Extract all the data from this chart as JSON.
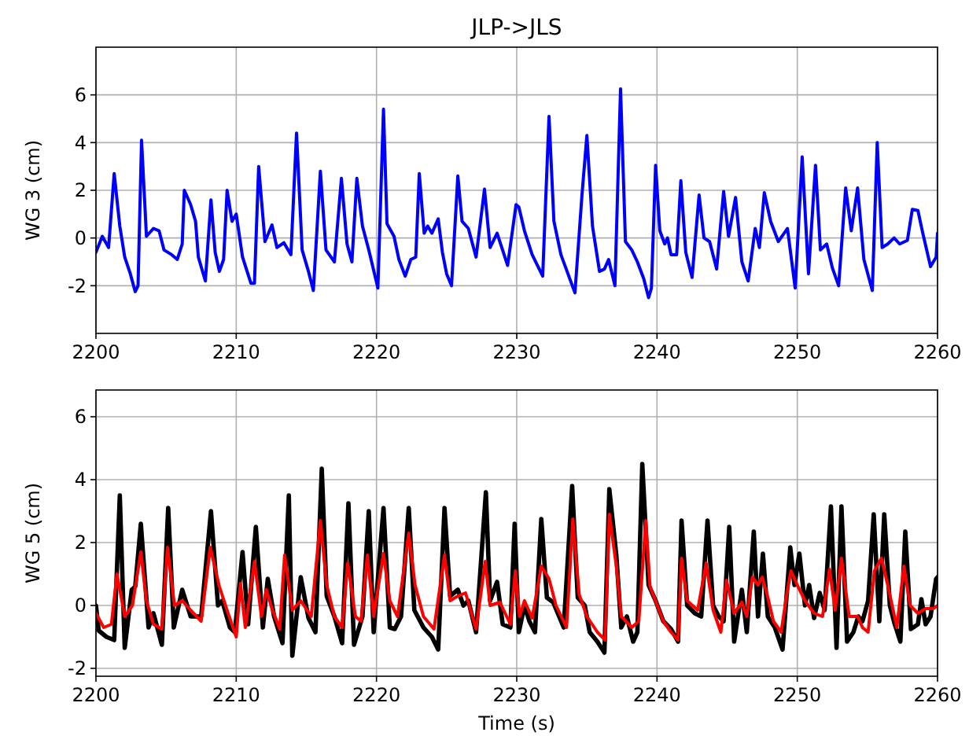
{
  "chart_data": [
    {
      "type": "line",
      "title": "JLP->JLS",
      "ylabel": "WG 3 (cm)",
      "xlim": [
        2200,
        2260
      ],
      "xticks": [
        2200,
        2210,
        2220,
        2230,
        2240,
        2250,
        2260
      ],
      "ylim": [
        -4,
        8
      ],
      "yticks": [
        -2,
        0,
        2,
        4,
        6
      ],
      "grid": true,
      "series": [
        {
          "color": "#0000ff",
          "x": [
            2200,
            2200.45,
            2200.9,
            2201.3,
            2201.7,
            2202.05,
            2202.45,
            2202.8,
            2203,
            2203.25,
            2203.6,
            2204.1,
            2204.5,
            2204.85,
            2205.4,
            2205.8,
            2206.15,
            2206.3,
            2206.75,
            2207.1,
            2207.3,
            2207.8,
            2208.2,
            2208.5,
            2208.8,
            2209.1,
            2209.35,
            2209.7,
            2210,
            2210.45,
            2211.05,
            2211.3,
            2211.6,
            2212.05,
            2212.55,
            2212.9,
            2213.4,
            2213.9,
            2214.3,
            2214.7,
            2215.15,
            2215.5,
            2216,
            2216.4,
            2217,
            2217.5,
            2217.9,
            2218.25,
            2218.6,
            2219,
            2219.45,
            2220.1,
            2220.5,
            2220.75,
            2221.25,
            2221.6,
            2222.05,
            2222.45,
            2222.8,
            2223.05,
            2223.4,
            2223.65,
            2223.95,
            2224.4,
            2224.7,
            2225,
            2225.35,
            2225.8,
            2226.1,
            2226.55,
            2227.1,
            2227.7,
            2228.1,
            2228.6,
            2229.35,
            2229.95,
            2230.15,
            2230.55,
            2231.1,
            2231.85,
            2232.3,
            2232.65,
            2233.15,
            2233.65,
            2234.15,
            2234.65,
            2235,
            2235.4,
            2235.9,
            2236.25,
            2236.55,
            2237,
            2237.4,
            2237.75,
            2238.2,
            2238.6,
            2239.05,
            2239.4,
            2239.6,
            2239.9,
            2240.2,
            2240.55,
            2240.75,
            2241,
            2241.4,
            2241.7,
            2242.05,
            2242.5,
            2243,
            2243.35,
            2243.75,
            2244.25,
            2244.75,
            2245.1,
            2245.6,
            2246.05,
            2246.5,
            2247,
            2247.3,
            2247.65,
            2248.1,
            2248.65,
            2249.3,
            2249.85,
            2250.35,
            2250.8,
            2251.3,
            2251.65,
            2252.1,
            2252.5,
            2252.95,
            2253.45,
            2253.85,
            2254.3,
            2254.75,
            2255.35,
            2255.7,
            2256.05,
            2256.45,
            2256.9,
            2257.3,
            2257.85,
            2258.2,
            2258.6,
            2258.95,
            2259.5,
            2259.9,
            2260
          ],
          "values": [
            -0.6,
            0.07,
            -0.4,
            2.7,
            0.5,
            -0.8,
            -1.5,
            -2.25,
            -2,
            4.1,
            0.07,
            0.4,
            0.3,
            -0.5,
            -0.7,
            -0.9,
            -0.25,
            2,
            1.4,
            0.7,
            -0.8,
            -1.8,
            1.6,
            -0.6,
            -1.4,
            -0.9,
            2,
            0.7,
            1,
            -0.8,
            -1.9,
            -1.9,
            3,
            -0.15,
            0.55,
            -0.4,
            -0.2,
            -0.7,
            4.4,
            -0.5,
            -1.4,
            -2.2,
            2.8,
            -0.5,
            -1,
            2.5,
            -0.25,
            -1,
            2.5,
            0.5,
            -0.5,
            -2.1,
            5.4,
            0.6,
            0.07,
            -0.9,
            -1.6,
            -0.9,
            -0.8,
            2.7,
            0.2,
            0.5,
            0.2,
            0.8,
            -0.6,
            -1.5,
            -2,
            2.6,
            0.7,
            0.4,
            -0.8,
            2.05,
            -0.4,
            0.2,
            -1.15,
            1.4,
            1.3,
            0.3,
            -0.7,
            -1.6,
            5.1,
            0.7,
            -0.7,
            -1.5,
            -2.3,
            1.8,
            4.3,
            0.5,
            -1.4,
            -1.3,
            -0.9,
            -2,
            6.25,
            -0.15,
            -0.5,
            -1,
            -1.7,
            -2.5,
            -2.1,
            3.05,
            0.3,
            -0.25,
            0,
            -0.7,
            -0.7,
            2.4,
            -0.6,
            -1.65,
            1.8,
            0,
            -0.15,
            -1.3,
            1.95,
            0.07,
            1.7,
            -1,
            -1.8,
            0.4,
            -0.4,
            1.9,
            0.7,
            -0.15,
            0.4,
            -2.1,
            3.4,
            -1.5,
            3.05,
            -0.5,
            -0.25,
            -1.25,
            -2,
            2.1,
            0.3,
            2.1,
            -0.9,
            -2.2,
            4,
            -0.4,
            -0.25,
            0,
            -0.25,
            -0.1,
            1.2,
            1.15,
            0.2,
            -1.2,
            -0.8,
            0.2
          ]
        }
      ]
    },
    {
      "type": "line",
      "xlabel": "Time (s)",
      "ylabel": "WG 5 (cm)",
      "xlim": [
        2200,
        2260
      ],
      "xticks": [
        2200,
        2210,
        2220,
        2230,
        2240,
        2250,
        2260
      ],
      "ylim": [
        -2.25,
        6.85
      ],
      "yticks": [
        -2,
        0,
        2,
        4,
        6
      ],
      "grid": true,
      "series": [
        {
          "color": "#000000",
          "x": [
            2200,
            2200.2,
            2200.75,
            2201.3,
            2201.7,
            2202.05,
            2202.55,
            2202.8,
            2203.2,
            2203.55,
            2203.75,
            2204.1,
            2204.7,
            2205.15,
            2205.55,
            2206.15,
            2206.75,
            2207.5,
            2208.2,
            2208.7,
            2209,
            2209.55,
            2209.9,
            2210.45,
            2210.85,
            2211.4,
            2211.9,
            2212.25,
            2212.7,
            2213.3,
            2213.75,
            2214,
            2214.6,
            2215.15,
            2215.65,
            2216.1,
            2216.45,
            2217,
            2217.55,
            2218,
            2218.4,
            2219,
            2219.45,
            2219.8,
            2220.5,
            2220.95,
            2221.3,
            2221.75,
            2222.3,
            2222.7,
            2223.35,
            2223.95,
            2224.4,
            2224.85,
            2225.25,
            2225.8,
            2226.2,
            2226.55,
            2227.1,
            2227.8,
            2228.1,
            2228.6,
            2229,
            2229.55,
            2229.85,
            2230.15,
            2230.55,
            2230.9,
            2231.3,
            2231.75,
            2232.15,
            2232.6,
            2233.35,
            2233.95,
            2234.35,
            2234.85,
            2235.2,
            2235.75,
            2236.25,
            2236.6,
            2237.1,
            2237.45,
            2237.85,
            2238.3,
            2238.6,
            2238.95,
            2239.4,
            2239.9,
            2240.45,
            2241,
            2241.5,
            2241.75,
            2242.15,
            2242.7,
            2243.15,
            2243.6,
            2244,
            2244.4,
            2244.75,
            2245.15,
            2245.5,
            2246.05,
            2246.4,
            2246.9,
            2247.2,
            2247.55,
            2247.9,
            2248.4,
            2248.95,
            2249.5,
            2249.8,
            2250.15,
            2250.55,
            2250.85,
            2251.2,
            2251.6,
            2251.95,
            2252.4,
            2252.8,
            2253.15,
            2253.55,
            2254,
            2254.35,
            2254.65,
            2255.05,
            2255.45,
            2255.85,
            2256.2,
            2256.6,
            2256.95,
            2257.35,
            2257.7,
            2258.1,
            2258.6,
            2258.85,
            2259.15,
            2259.5,
            2259.9,
            2260
          ],
          "values": [
            0,
            -0.8,
            -1,
            -1.1,
            3.5,
            -1.35,
            0.5,
            0.6,
            2.6,
            0.5,
            -0.7,
            -0.25,
            -1.25,
            3.1,
            -0.7,
            0.5,
            -0.35,
            -0.35,
            3,
            0,
            0.15,
            -0.7,
            -0.85,
            1.7,
            -0.6,
            2.5,
            -0.7,
            0.85,
            -0.35,
            -1.2,
            3.5,
            -1.6,
            0.9,
            -0.4,
            -0.85,
            4.35,
            0.3,
            -0.35,
            -1.2,
            3.25,
            -1.25,
            -0.35,
            3,
            -0.85,
            3.1,
            -0.7,
            -0.75,
            -0.35,
            3.1,
            -0.15,
            -0.7,
            -1,
            -1.4,
            3.1,
            0.3,
            0.5,
            0,
            0.15,
            -0.85,
            3.6,
            0.15,
            0.75,
            -0.6,
            -0.7,
            2.6,
            -0.85,
            0,
            -0.5,
            -0.85,
            2.75,
            0.25,
            0.1,
            -0.7,
            3.8,
            0.25,
            0,
            -0.85,
            -1.15,
            -1.5,
            3.7,
            1.6,
            -0.7,
            -0.35,
            -1.15,
            -0.85,
            4.5,
            0.65,
            0.15,
            -0.5,
            -0.75,
            -1.15,
            2.7,
            0,
            -0.25,
            -0.35,
            2.7,
            0,
            -0.35,
            -0.5,
            2.5,
            -1.15,
            0.5,
            -0.85,
            2.35,
            -0.35,
            1.65,
            -0.35,
            -0.7,
            -1.4,
            1.85,
            0.65,
            1.65,
            0,
            0.65,
            -0.4,
            0.4,
            -0.15,
            3.15,
            -1.35,
            3.15,
            -1.15,
            -0.85,
            -0.35,
            -0.5,
            0.15,
            2.9,
            -0.5,
            2.9,
            0,
            -0.6,
            -1.15,
            2.35,
            -0.75,
            -0.6,
            0.2,
            -0.6,
            -0.35,
            0.85,
            0.9
          ]
        },
        {
          "color": "#ff0000",
          "x": [
            2200,
            2200.55,
            2201.1,
            2201.5,
            2202.05,
            2202.6,
            2203.2,
            2203.6,
            2204.1,
            2204.7,
            2205.1,
            2205.6,
            2206.15,
            2206.75,
            2207.5,
            2208.15,
            2208.8,
            2209.35,
            2210,
            2210.3,
            2210.65,
            2211.3,
            2211.8,
            2212.15,
            2212.55,
            2213.1,
            2213.45,
            2214,
            2214.6,
            2215.35,
            2216,
            2216.45,
            2217,
            2217.55,
            2217.95,
            2218.5,
            2218.9,
            2219.35,
            2219.8,
            2220.5,
            2220.95,
            2221.5,
            2222.3,
            2222.75,
            2223.35,
            2224.1,
            2224.85,
            2225.25,
            2225.8,
            2226.35,
            2227.1,
            2227.75,
            2228.1,
            2228.8,
            2229.55,
            2229.9,
            2230.2,
            2230.55,
            2231.1,
            2231.75,
            2232.3,
            2232.8,
            2233.55,
            2234,
            2234.45,
            2235,
            2235.75,
            2236.3,
            2236.6,
            2237.1,
            2237.45,
            2238.2,
            2238.7,
            2239.2,
            2239.5,
            2240.45,
            2241,
            2241.5,
            2241.75,
            2242.15,
            2242.9,
            2243.5,
            2244,
            2244.55,
            2244.95,
            2245.5,
            2246.05,
            2246.4,
            2246.8,
            2247.2,
            2247.5,
            2247.85,
            2248.3,
            2248.85,
            2249.25,
            2249.55,
            2250,
            2250.55,
            2251.2,
            2251.8,
            2252.3,
            2252.7,
            2253.15,
            2253.7,
            2254.3,
            2254.65,
            2255.05,
            2255.5,
            2256,
            2256.45,
            2257.1,
            2257.6,
            2258.05,
            2258.6,
            2259.15,
            2259.7,
            2260
          ],
          "values": [
            -0.25,
            -0.7,
            -0.6,
            1,
            -0.35,
            0,
            1.7,
            0.15,
            -0.6,
            -0.75,
            1.85,
            0,
            0.15,
            -0.15,
            -0.5,
            1.85,
            0.6,
            -0.15,
            -1,
            0.7,
            -0.7,
            1.4,
            -0.35,
            0.5,
            -0.1,
            -0.75,
            1.6,
            -0.15,
            0.15,
            -0.35,
            2.7,
            0.65,
            -0.35,
            -0.7,
            1.35,
            -0.35,
            -0.5,
            1.6,
            -0.35,
            1.65,
            0.15,
            -0.35,
            2.3,
            0.65,
            -0.35,
            -0.75,
            1.6,
            0.15,
            0.3,
            0.4,
            -0.75,
            1.4,
            0,
            0.1,
            -0.6,
            1.1,
            -0.35,
            0.15,
            -0.4,
            1.25,
            0.85,
            0,
            -0.7,
            2.75,
            0.35,
            -0.35,
            -0.85,
            -1.1,
            2.9,
            1.25,
            -0.35,
            -0.7,
            -0.5,
            2.7,
            0.6,
            -0.5,
            -0.85,
            -1.1,
            1.5,
            0.15,
            -0.15,
            1.35,
            -0.15,
            -0.85,
            0.8,
            -0.25,
            0.1,
            -0.35,
            0.9,
            0.65,
            0.9,
            0.35,
            -0.5,
            -0.85,
            0.35,
            1.1,
            0.65,
            0.15,
            -0.25,
            -0.35,
            1.15,
            -0.15,
            1.5,
            -0.35,
            -0.35,
            -0.7,
            -0.85,
            1.1,
            1.5,
            0.65,
            -0.7,
            1.25,
            0,
            -0.25,
            -0.1,
            -0.1,
            0
          ]
        }
      ]
    }
  ]
}
